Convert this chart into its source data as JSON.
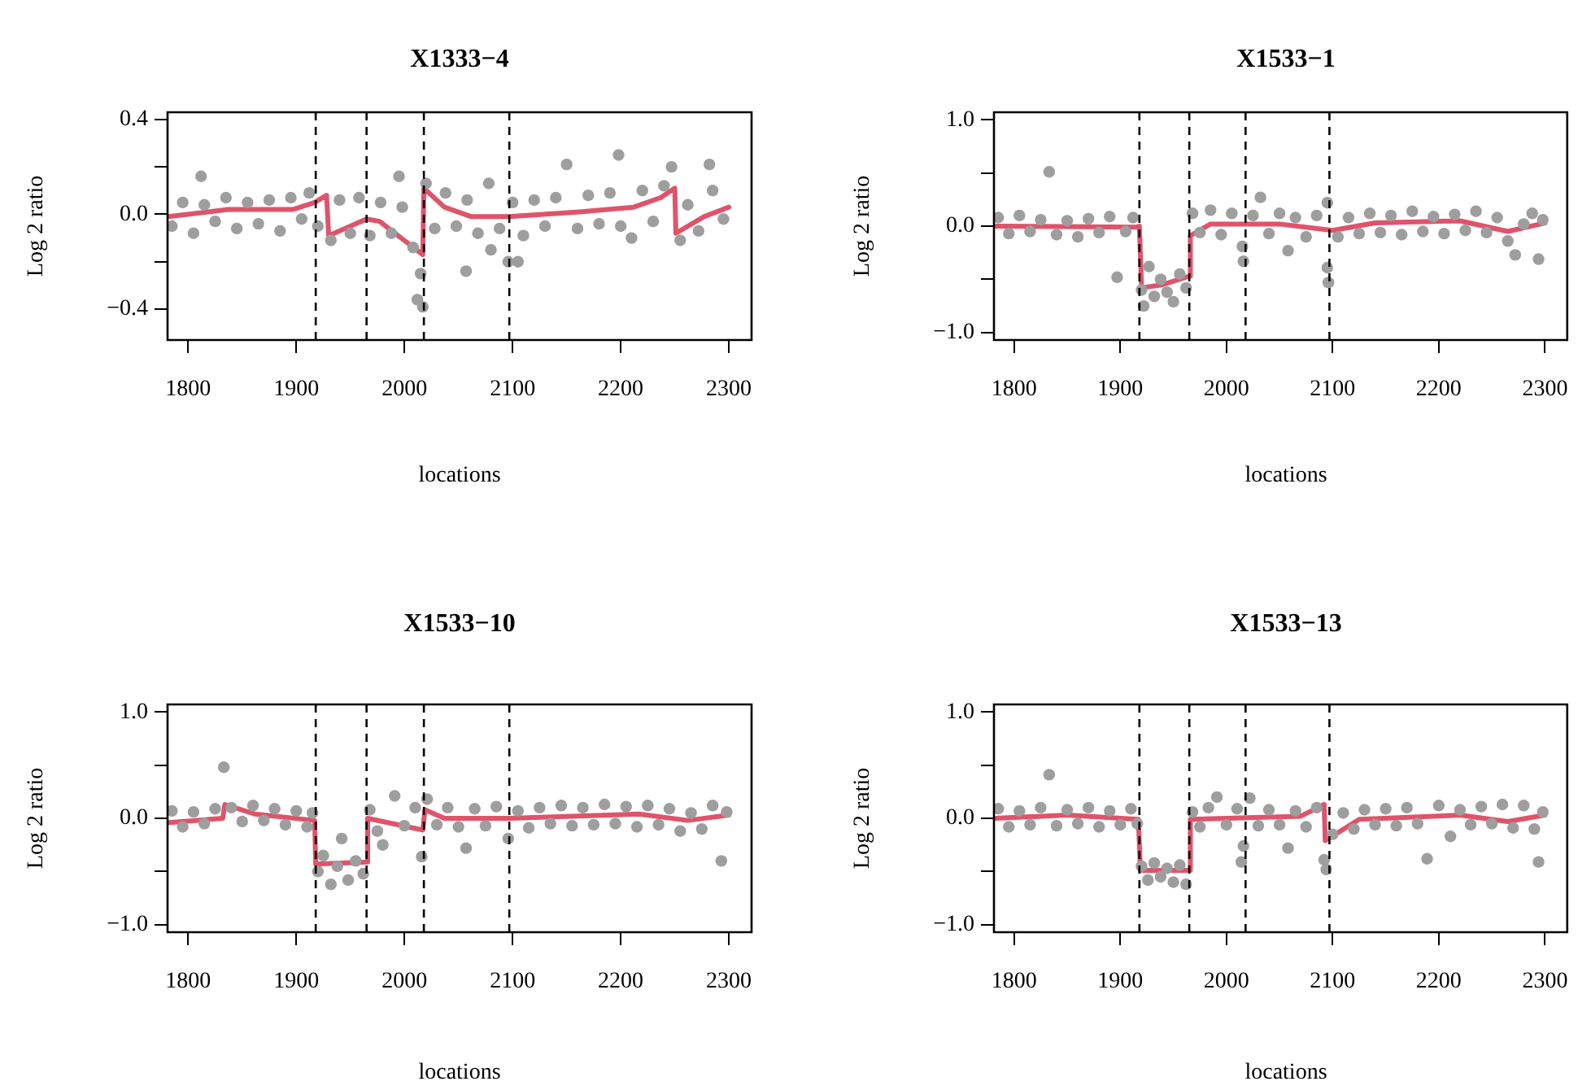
{
  "chart_data": [
    {
      "type": "scatter",
      "title": "X1333−4",
      "xlabel": "locations",
      "ylabel": "Log 2 ratio",
      "xlim": [
        1781,
        2321
      ],
      "xticks": [
        1800,
        1900,
        2000,
        2100,
        2200,
        2300
      ],
      "ylim": [
        -0.53,
        0.43
      ],
      "yticks": [
        {
          "value": -0.4,
          "label": "−0.4"
        },
        {
          "value": -0.2,
          "label": null
        },
        {
          "value": 0,
          "label": "0.0"
        },
        {
          "value": 0.2,
          "label": null
        },
        0.4
      ],
      "ref_lines": [
        {
          "axis": "x",
          "value": 1918,
          "color": "#000000",
          "line_style": "dashed"
        },
        {
          "axis": "x",
          "value": 1965,
          "color": "#000000",
          "line_style": "dashed"
        },
        {
          "axis": "x",
          "value": 2018,
          "color": "#000000",
          "line_style": "dashed"
        },
        {
          "axis": "x",
          "value": 2097,
          "color": "#000000",
          "line_style": "dashed"
        }
      ],
      "series": [
        {
          "marker": "circle",
          "color": "#9e9e9e",
          "x": [
            1785,
            1795,
            1805,
            1812,
            1815,
            1825,
            1835,
            1845,
            1855,
            1865,
            1875,
            1885,
            1895,
            1905,
            1912,
            1920,
            1932,
            1940,
            1950,
            1958,
            1968,
            1978,
            1988,
            1995,
            1998,
            2008,
            2012,
            2015,
            2017,
            2020,
            2028,
            2038,
            2048,
            2057,
            2058,
            2068,
            2078,
            2080,
            2088,
            2096,
            2100,
            2105,
            2110,
            2120,
            2130,
            2140,
            2150,
            2160,
            2170,
            2180,
            2190,
            2198,
            2200,
            2210,
            2220,
            2230,
            2240,
            2247,
            2255,
            2262,
            2272,
            2282,
            2285,
            2295
          ],
          "values": [
            -0.05,
            0.05,
            -0.08,
            0.16,
            0.04,
            -0.03,
            0.07,
            -0.06,
            0.05,
            -0.04,
            0.06,
            -0.07,
            0.07,
            -0.02,
            0.09,
            -0.05,
            -0.11,
            0.06,
            -0.08,
            0.07,
            -0.09,
            0.05,
            -0.08,
            0.16,
            0.03,
            -0.14,
            -0.36,
            -0.25,
            -0.39,
            0.13,
            -0.06,
            0.09,
            -0.05,
            -0.24,
            0.06,
            -0.08,
            0.13,
            -0.15,
            -0.06,
            -0.2,
            0.05,
            -0.2,
            -0.09,
            0.06,
            -0.05,
            0.07,
            0.21,
            -0.06,
            0.08,
            -0.04,
            0.09,
            0.25,
            -0.05,
            -0.1,
            0.1,
            -0.03,
            0.12,
            0.2,
            -0.11,
            0.04,
            -0.07,
            0.21,
            0.1,
            -0.02
          ]
        },
        {
          "type": "line",
          "marker": "none",
          "color": "#df536b",
          "x": [
            1782,
            1837,
            1897,
            1917,
            1928,
            1930,
            1965,
            1977,
            2017,
            2018,
            2037,
            2062,
            2097,
            2162,
            2212,
            2237,
            2250,
            2251,
            2277,
            2300
          ],
          "values": [
            -0.01,
            0.02,
            0.02,
            0.05,
            0.08,
            -0.09,
            -0.02,
            -0.03,
            -0.17,
            0.11,
            0.03,
            -0.01,
            -0.01,
            0.01,
            0.03,
            0.07,
            0.11,
            -0.08,
            -0.01,
            0.03
          ]
        }
      ]
    },
    {
      "type": "scatter",
      "title": "X1533−1",
      "xlabel": "locations",
      "ylabel": "Log 2 ratio",
      "xlim": [
        1781,
        2321
      ],
      "xticks": [
        1800,
        1900,
        2000,
        2100,
        2200,
        2300
      ],
      "ylim": [
        -1.07,
        1.07
      ],
      "yticks": [
        {
          "value": -1,
          "label": "−1.0"
        },
        {
          "value": -0.5,
          "label": null
        },
        {
          "value": 0,
          "label": "0.0"
        },
        {
          "value": 0.5,
          "label": null
        },
        {
          "value": 1,
          "label": "1.0"
        }
      ],
      "ref_lines": [
        {
          "axis": "x",
          "value": 1918,
          "color": "#000000",
          "line_style": "dashed"
        },
        {
          "axis": "x",
          "value": 1965,
          "color": "#000000",
          "line_style": "dashed"
        },
        {
          "axis": "x",
          "value": 2018,
          "color": "#000000",
          "line_style": "dashed"
        },
        {
          "axis": "x",
          "value": 2097,
          "color": "#000000",
          "line_style": "dashed"
        }
      ],
      "series": [
        {
          "marker": "circle",
          "color": "#9e9e9e",
          "x": [
            1785,
            1795,
            1805,
            1815,
            1825,
            1833,
            1840,
            1850,
            1860,
            1870,
            1880,
            1890,
            1897,
            1905,
            1912,
            1920,
            1922,
            1927,
            1932,
            1938,
            1944,
            1950,
            1956,
            1962,
            1968,
            1975,
            1985,
            1995,
            2005,
            2015,
            2016,
            2025,
            2032,
            2040,
            2050,
            2058,
            2065,
            2075,
            2085,
            2095,
            2096,
            2095,
            2105,
            2115,
            2125,
            2135,
            2145,
            2155,
            2165,
            2175,
            2185,
            2195,
            2205,
            2215,
            2225,
            2235,
            2245,
            2255,
            2265,
            2272,
            2280,
            2288,
            2294,
            2298
          ],
          "values": [
            0.08,
            -0.07,
            0.1,
            -0.05,
            0.06,
            0.51,
            -0.08,
            0.05,
            -0.1,
            0.07,
            -0.06,
            0.09,
            -0.48,
            -0.05,
            0.08,
            -0.6,
            -0.75,
            -0.38,
            -0.66,
            -0.5,
            -0.62,
            -0.71,
            -0.45,
            -0.58,
            0.12,
            -0.06,
            0.15,
            -0.08,
            0.12,
            -0.19,
            -0.33,
            0.1,
            0.27,
            -0.07,
            0.12,
            -0.23,
            0.08,
            -0.1,
            0.1,
            -0.39,
            -0.53,
            0.22,
            -0.1,
            0.08,
            -0.07,
            0.12,
            -0.06,
            0.1,
            -0.08,
            0.14,
            -0.05,
            0.09,
            -0.07,
            0.11,
            -0.04,
            0.14,
            -0.06,
            0.08,
            -0.14,
            -0.27,
            0.02,
            0.12,
            -0.31,
            0.06
          ]
        },
        {
          "type": "line",
          "marker": "none",
          "color": "#df536b",
          "x": [
            1782,
            1915,
            1918,
            1920,
            1940,
            1965,
            1966,
            1985,
            2050,
            2100,
            2140,
            2220,
            2265,
            2300
          ],
          "values": [
            0,
            -0.01,
            0,
            -0.58,
            -0.55,
            -0.47,
            -0.09,
            0.02,
            0.02,
            -0.04,
            0.03,
            0.05,
            -0.05,
            0.03
          ]
        }
      ]
    },
    {
      "type": "scatter",
      "title": "X1533−10",
      "xlabel": "locations",
      "ylabel": "Log 2 ratio",
      "xlim": [
        1781,
        2321
      ],
      "xticks": [
        1800,
        1900,
        2000,
        2100,
        2200,
        2300
      ],
      "ylim": [
        -1.07,
        1.07
      ],
      "yticks": [
        {
          "value": -1,
          "label": "−1.0"
        },
        {
          "value": -0.5,
          "label": null
        },
        {
          "value": 0,
          "label": "0.0"
        },
        {
          "value": 0.5,
          "label": null
        },
        {
          "value": 1,
          "label": "1.0"
        }
      ],
      "ref_lines": [
        {
          "axis": "x",
          "value": 1918,
          "color": "#000000",
          "line_style": "dashed"
        },
        {
          "axis": "x",
          "value": 1965,
          "color": "#000000",
          "line_style": "dashed"
        },
        {
          "axis": "x",
          "value": 2018,
          "color": "#000000",
          "line_style": "dashed"
        },
        {
          "axis": "x",
          "value": 2097,
          "color": "#000000",
          "line_style": "dashed"
        }
      ],
      "series": [
        {
          "marker": "circle",
          "color": "#9e9e9e",
          "x": [
            1785,
            1795,
            1805,
            1815,
            1825,
            1833,
            1840,
            1850,
            1860,
            1870,
            1880,
            1890,
            1900,
            1910,
            1915,
            1920,
            1925,
            1932,
            1938,
            1942,
            1948,
            1955,
            1962,
            1968,
            1975,
            1980,
            1991,
            2000,
            2010,
            2016,
            2021,
            2030,
            2040,
            2050,
            2057,
            2065,
            2075,
            2085,
            2096,
            2105,
            2115,
            2125,
            2135,
            2145,
            2155,
            2165,
            2175,
            2185,
            2195,
            2205,
            2215,
            2225,
            2235,
            2245,
            2255,
            2265,
            2275,
            2285,
            2293,
            2298
          ],
          "values": [
            0.07,
            -0.08,
            0.06,
            -0.05,
            0.09,
            0.48,
            0.1,
            -0.03,
            0.12,
            -0.02,
            0.09,
            -0.06,
            0.07,
            -0.08,
            0.05,
            -0.5,
            -0.35,
            -0.62,
            -0.45,
            -0.19,
            -0.58,
            -0.4,
            -0.52,
            0.08,
            -0.12,
            -0.25,
            0.21,
            -0.07,
            0.1,
            -0.36,
            0.18,
            -0.06,
            0.1,
            -0.08,
            -0.28,
            0.09,
            -0.07,
            0.11,
            -0.19,
            0.07,
            -0.09,
            0.1,
            -0.05,
            0.12,
            -0.07,
            0.1,
            -0.06,
            0.13,
            -0.05,
            0.11,
            -0.08,
            0.12,
            -0.06,
            0.09,
            -0.12,
            0.05,
            -0.1,
            0.12,
            -0.4,
            0.06
          ]
        },
        {
          "type": "line",
          "marker": "none",
          "color": "#df536b",
          "x": [
            1782,
            1832,
            1834,
            1862,
            1917,
            1918,
            1965,
            1966,
            2017,
            2019,
            2037,
            2097,
            2217,
            2262,
            2300
          ],
          "values": [
            -0.04,
            0,
            0.13,
            0.04,
            -0.02,
            -0.43,
            -0.41,
            0,
            -0.11,
            0.08,
            0,
            0,
            0.04,
            -0.02,
            0.03
          ]
        }
      ]
    },
    {
      "type": "scatter",
      "title": "X1533−13",
      "xlabel": "locations",
      "ylabel": "Log 2 ratio",
      "xlim": [
        1781,
        2321
      ],
      "xticks": [
        1800,
        1900,
        2000,
        2100,
        2200,
        2300
      ],
      "ylim": [
        -1.07,
        1.07
      ],
      "yticks": [
        {
          "value": -1,
          "label": "−1.0"
        },
        {
          "value": -0.5,
          "label": null
        },
        {
          "value": 0,
          "label": "0.0"
        },
        {
          "value": 0.5,
          "label": null
        },
        {
          "value": 1,
          "label": "1.0"
        }
      ],
      "ref_lines": [
        {
          "axis": "x",
          "value": 1918,
          "color": "#000000",
          "line_style": "dashed"
        },
        {
          "axis": "x",
          "value": 1965,
          "color": "#000000",
          "line_style": "dashed"
        },
        {
          "axis": "x",
          "value": 2018,
          "color": "#000000",
          "line_style": "dashed"
        },
        {
          "axis": "x",
          "value": 2097,
          "color": "#000000",
          "line_style": "dashed"
        }
      ],
      "series": [
        {
          "marker": "circle",
          "color": "#9e9e9e",
          "x": [
            1785,
            1795,
            1805,
            1815,
            1825,
            1833,
            1840,
            1850,
            1860,
            1870,
            1880,
            1890,
            1900,
            1910,
            1916,
            1920,
            1926,
            1932,
            1938,
            1944,
            1950,
            1956,
            1962,
            1968,
            1975,
            1983,
            1991,
            2000,
            2010,
            2014,
            2016,
            2022,
            2030,
            2040,
            2050,
            2058,
            2065,
            2075,
            2085,
            2092,
            2094,
            2100,
            2110,
            2120,
            2130,
            2140,
            2150,
            2160,
            2170,
            2180,
            2189,
            2200,
            2211,
            2220,
            2230,
            2240,
            2250,
            2260,
            2270,
            2280,
            2290,
            2294,
            2298
          ],
          "values": [
            0.09,
            -0.08,
            0.07,
            -0.06,
            0.1,
            0.41,
            -0.07,
            0.08,
            -0.05,
            0.1,
            -0.08,
            0.07,
            -0.06,
            0.09,
            -0.05,
            -0.45,
            -0.58,
            -0.42,
            -0.55,
            -0.47,
            -0.6,
            -0.44,
            -0.62,
            0.06,
            -0.08,
            0.1,
            0.2,
            -0.06,
            0.09,
            -0.41,
            -0.26,
            0.19,
            -0.07,
            0.08,
            -0.06,
            -0.28,
            0.07,
            -0.08,
            0.1,
            -0.39,
            -0.48,
            -0.15,
            0.05,
            -0.1,
            0.08,
            -0.06,
            0.09,
            -0.07,
            0.1,
            -0.05,
            -0.38,
            0.12,
            -0.17,
            0.08,
            -0.06,
            0.11,
            -0.05,
            0.13,
            -0.09,
            0.12,
            -0.1,
            -0.41,
            0.06
          ]
        },
        {
          "type": "line",
          "marker": "none",
          "color": "#df536b",
          "x": [
            1782,
            1850,
            1917,
            1919,
            1965,
            1966,
            2070,
            2092,
            2093,
            2125,
            2220,
            2265,
            2300
          ],
          "values": [
            0,
            0.03,
            -0.01,
            -0.49,
            -0.49,
            -0.01,
            0.02,
            0.13,
            -0.21,
            -0.01,
            0.03,
            -0.03,
            0.03
          ]
        }
      ]
    }
  ]
}
